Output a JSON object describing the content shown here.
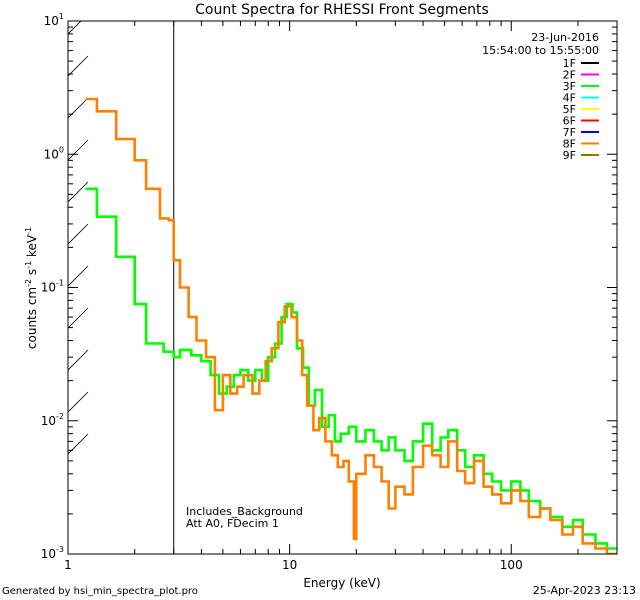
{
  "chart_data": {
    "type": "line",
    "title": "Count Spectra for RHESSI Front Segments",
    "xlabel": "Energy (keV)",
    "ylabel_parts": [
      "counts cm",
      "-2",
      " s",
      "-1",
      " keV",
      "-1"
    ],
    "xscale": "log",
    "yscale": "log",
    "xlim": [
      1,
      300
    ],
    "ylim": [
      0.001,
      10
    ],
    "xticks": [
      {
        "value": 1,
        "label": "1"
      },
      {
        "value": 10,
        "label": "10"
      },
      {
        "value": 100,
        "label": "100"
      }
    ],
    "yticks": [
      {
        "value": 10,
        "base": "10",
        "exp": "1"
      },
      {
        "value": 1,
        "base": "10",
        "exp": "0"
      },
      {
        "value": 0.1,
        "base": "10",
        "exp": "-1"
      },
      {
        "value": 0.01,
        "base": "10",
        "exp": "-2"
      },
      {
        "value": 0.001,
        "base": "10",
        "exp": "-3"
      }
    ],
    "hatched_region_keV": [
      1,
      3
    ],
    "date": "23-Jun-2016",
    "time_range": "15:54:00 to 15:55:00",
    "legend_position": "top-right",
    "legend": [
      {
        "label": "1F",
        "color": "#000000"
      },
      {
        "label": "2F",
        "color": "#ff00ff"
      },
      {
        "label": "3F",
        "color": "#00ff00"
      },
      {
        "label": "4F",
        "color": "#00ffff"
      },
      {
        "label": "5F",
        "color": "#ffff00"
      },
      {
        "label": "6F",
        "color": "#ff0000"
      },
      {
        "label": "7F",
        "color": "#0000ff"
      },
      {
        "label": "8F",
        "color": "#ff8000"
      },
      {
        "label": "9F",
        "color": "#808000"
      }
    ],
    "annotations": [
      "Includes_Background",
      "Att A0, FDecim 1"
    ],
    "series": [
      {
        "name": "3F",
        "color": "#00ff00",
        "points": [
          [
            1.2,
            0.55
          ],
          [
            1.35,
            0.55
          ],
          [
            1.35,
            0.34
          ],
          [
            1.65,
            0.34
          ],
          [
            1.65,
            0.17
          ],
          [
            2.0,
            0.17
          ],
          [
            2.0,
            0.075
          ],
          [
            2.25,
            0.075
          ],
          [
            2.25,
            0.038
          ],
          [
            2.7,
            0.038
          ],
          [
            2.7,
            0.033
          ],
          [
            3.0,
            0.033
          ],
          [
            3.0,
            0.03
          ],
          [
            3.2,
            0.03
          ],
          [
            3.2,
            0.034
          ],
          [
            3.6,
            0.034
          ],
          [
            3.6,
            0.031
          ],
          [
            4.0,
            0.031
          ],
          [
            4.0,
            0.028
          ],
          [
            4.4,
            0.028
          ],
          [
            4.4,
            0.022
          ],
          [
            4.8,
            0.022
          ],
          [
            4.8,
            0.016
          ],
          [
            5.2,
            0.016
          ],
          [
            5.2,
            0.018
          ],
          [
            5.6,
            0.018
          ],
          [
            5.6,
            0.022
          ],
          [
            6.0,
            0.022
          ],
          [
            6.0,
            0.024
          ],
          [
            6.5,
            0.024
          ],
          [
            6.5,
            0.02
          ],
          [
            7.0,
            0.02
          ],
          [
            7.0,
            0.024
          ],
          [
            7.5,
            0.024
          ],
          [
            7.5,
            0.02
          ],
          [
            8.0,
            0.02
          ],
          [
            8.0,
            0.03
          ],
          [
            8.6,
            0.03
          ],
          [
            8.6,
            0.038
          ],
          [
            9.2,
            0.038
          ],
          [
            9.2,
            0.06
          ],
          [
            9.7,
            0.06
          ],
          [
            9.7,
            0.075
          ],
          [
            10.3,
            0.075
          ],
          [
            10.3,
            0.065
          ],
          [
            10.8,
            0.065
          ],
          [
            10.8,
            0.035
          ],
          [
            11.5,
            0.035
          ],
          [
            11.5,
            0.025
          ],
          [
            12.2,
            0.025
          ],
          [
            12.2,
            0.013
          ],
          [
            13.0,
            0.013
          ],
          [
            13.0,
            0.017
          ],
          [
            14.0,
            0.017
          ],
          [
            14.0,
            0.009
          ],
          [
            15.0,
            0.009
          ],
          [
            15.0,
            0.011
          ],
          [
            16.0,
            0.011
          ],
          [
            16.0,
            0.007
          ],
          [
            17.0,
            0.007
          ],
          [
            17.0,
            0.008
          ],
          [
            18.5,
            0.008
          ],
          [
            18.5,
            0.009
          ],
          [
            20.0,
            0.009
          ],
          [
            20.0,
            0.007
          ],
          [
            22.0,
            0.007
          ],
          [
            22.0,
            0.0085
          ],
          [
            24.0,
            0.0085
          ],
          [
            24.0,
            0.007
          ],
          [
            26.0,
            0.007
          ],
          [
            26.0,
            0.006
          ],
          [
            28.0,
            0.006
          ],
          [
            28.0,
            0.0075
          ],
          [
            30.0,
            0.0075
          ],
          [
            30.0,
            0.006
          ],
          [
            33.0,
            0.006
          ],
          [
            33.0,
            0.005
          ],
          [
            36.0,
            0.005
          ],
          [
            36.0,
            0.007
          ],
          [
            40.0,
            0.007
          ],
          [
            40.0,
            0.0095
          ],
          [
            44.0,
            0.0095
          ],
          [
            44.0,
            0.006
          ],
          [
            48.0,
            0.006
          ],
          [
            48.0,
            0.0075
          ],
          [
            52.0,
            0.0075
          ],
          [
            52.0,
            0.0085
          ],
          [
            57.0,
            0.0085
          ],
          [
            57.0,
            0.006
          ],
          [
            62.0,
            0.006
          ],
          [
            62.0,
            0.0045
          ],
          [
            68.0,
            0.0045
          ],
          [
            68.0,
            0.0055
          ],
          [
            75.0,
            0.0055
          ],
          [
            75.0,
            0.004
          ],
          [
            82.0,
            0.004
          ],
          [
            82.0,
            0.0035
          ],
          [
            90.0,
            0.0035
          ],
          [
            90.0,
            0.003
          ],
          [
            100.0,
            0.003
          ],
          [
            100.0,
            0.0035
          ],
          [
            110.0,
            0.0035
          ],
          [
            110.0,
            0.003
          ],
          [
            120.0,
            0.003
          ],
          [
            120.0,
            0.0025
          ],
          [
            135.0,
            0.0025
          ],
          [
            135.0,
            0.0022
          ],
          [
            150.0,
            0.0022
          ],
          [
            150.0,
            0.0019
          ],
          [
            170.0,
            0.0019
          ],
          [
            170.0,
            0.0016
          ],
          [
            190.0,
            0.0016
          ],
          [
            190.0,
            0.0018
          ],
          [
            210.0,
            0.0018
          ],
          [
            210.0,
            0.0014
          ],
          [
            240.0,
            0.0014
          ],
          [
            240.0,
            0.0012
          ],
          [
            270.0,
            0.0012
          ],
          [
            270.0,
            0.0011
          ],
          [
            300.0,
            0.0011
          ]
        ]
      },
      {
        "name": "8F",
        "color": "#ff8000",
        "points": [
          [
            1.2,
            2.6
          ],
          [
            1.35,
            2.6
          ],
          [
            1.35,
            2.1
          ],
          [
            1.65,
            2.1
          ],
          [
            1.65,
            1.3
          ],
          [
            2.0,
            1.3
          ],
          [
            2.0,
            0.9
          ],
          [
            2.25,
            0.9
          ],
          [
            2.25,
            0.55
          ],
          [
            2.6,
            0.55
          ],
          [
            2.6,
            0.33
          ],
          [
            2.85,
            0.33
          ],
          [
            2.85,
            0.32
          ],
          [
            3.0,
            0.32
          ],
          [
            3.0,
            0.16
          ],
          [
            3.2,
            0.16
          ],
          [
            3.2,
            0.1
          ],
          [
            3.5,
            0.1
          ],
          [
            3.5,
            0.06
          ],
          [
            3.8,
            0.06
          ],
          [
            3.8,
            0.04
          ],
          [
            4.2,
            0.04
          ],
          [
            4.2,
            0.03
          ],
          [
            4.6,
            0.03
          ],
          [
            4.6,
            0.012
          ],
          [
            5.0,
            0.012
          ],
          [
            5.0,
            0.022
          ],
          [
            5.4,
            0.022
          ],
          [
            5.4,
            0.016
          ],
          [
            5.8,
            0.016
          ],
          [
            5.8,
            0.018
          ],
          [
            6.2,
            0.018
          ],
          [
            6.2,
            0.022
          ],
          [
            6.8,
            0.022
          ],
          [
            6.8,
            0.016
          ],
          [
            7.3,
            0.016
          ],
          [
            7.3,
            0.02
          ],
          [
            7.8,
            0.02
          ],
          [
            7.8,
            0.028
          ],
          [
            8.3,
            0.028
          ],
          [
            8.3,
            0.035
          ],
          [
            8.9,
            0.035
          ],
          [
            8.9,
            0.055
          ],
          [
            9.5,
            0.055
          ],
          [
            9.5,
            0.072
          ],
          [
            10.2,
            0.072
          ],
          [
            10.2,
            0.06
          ],
          [
            10.8,
            0.06
          ],
          [
            10.8,
            0.04
          ],
          [
            11.4,
            0.04
          ],
          [
            11.4,
            0.022
          ],
          [
            12.0,
            0.022
          ],
          [
            12.0,
            0.013
          ],
          [
            12.8,
            0.013
          ],
          [
            12.8,
            0.0085
          ],
          [
            13.6,
            0.0085
          ],
          [
            13.6,
            0.0105
          ],
          [
            14.5,
            0.0105
          ],
          [
            14.5,
            0.007
          ],
          [
            15.5,
            0.007
          ],
          [
            15.5,
            0.0055
          ],
          [
            16.5,
            0.0055
          ],
          [
            16.5,
            0.0045
          ],
          [
            17.5,
            0.0045
          ],
          [
            17.5,
            0.005
          ],
          [
            18.5,
            0.005
          ],
          [
            18.5,
            0.0035
          ],
          [
            19.5,
            0.0035
          ],
          [
            19.5,
            0.0013
          ],
          [
            20.0,
            0.0013
          ],
          [
            20.0,
            0.004
          ],
          [
            22.0,
            0.004
          ],
          [
            22.0,
            0.0055
          ],
          [
            24.0,
            0.0055
          ],
          [
            24.0,
            0.0045
          ],
          [
            26.0,
            0.0045
          ],
          [
            26.0,
            0.0035
          ],
          [
            28.0,
            0.0035
          ],
          [
            28.0,
            0.0022
          ],
          [
            30.0,
            0.0022
          ],
          [
            30.0,
            0.0032
          ],
          [
            33.0,
            0.0032
          ],
          [
            33.0,
            0.0028
          ],
          [
            36.0,
            0.0028
          ],
          [
            36.0,
            0.0045
          ],
          [
            40.0,
            0.0045
          ],
          [
            40.0,
            0.0065
          ],
          [
            44.0,
            0.0065
          ],
          [
            44.0,
            0.0055
          ],
          [
            48.0,
            0.0055
          ],
          [
            48.0,
            0.0045
          ],
          [
            52.0,
            0.0045
          ],
          [
            52.0,
            0.007
          ],
          [
            57.0,
            0.007
          ],
          [
            57.0,
            0.0042
          ],
          [
            62.0,
            0.0042
          ],
          [
            62.0,
            0.0034
          ],
          [
            68.0,
            0.0034
          ],
          [
            68.0,
            0.005
          ],
          [
            75.0,
            0.005
          ],
          [
            75.0,
            0.0032
          ],
          [
            82.0,
            0.0032
          ],
          [
            82.0,
            0.0028
          ],
          [
            90.0,
            0.0028
          ],
          [
            90.0,
            0.0024
          ],
          [
            100.0,
            0.0024
          ],
          [
            100.0,
            0.003
          ],
          [
            110.0,
            0.003
          ],
          [
            110.0,
            0.0025
          ],
          [
            120.0,
            0.0025
          ],
          [
            120.0,
            0.0019
          ],
          [
            135.0,
            0.0019
          ],
          [
            135.0,
            0.0022
          ],
          [
            150.0,
            0.0022
          ],
          [
            150.0,
            0.0018
          ],
          [
            170.0,
            0.0018
          ],
          [
            170.0,
            0.0014
          ],
          [
            190.0,
            0.0014
          ],
          [
            190.0,
            0.0016
          ],
          [
            210.0,
            0.0016
          ],
          [
            210.0,
            0.0012
          ],
          [
            240.0,
            0.0012
          ],
          [
            240.0,
            0.0011
          ],
          [
            270.0,
            0.0011
          ],
          [
            270.0,
            0.001
          ],
          [
            300.0,
            0.001
          ]
        ]
      }
    ]
  },
  "footer": {
    "generator": "Generated by hsi_min_spectra_plot.pro",
    "timestamp": "25-Apr-2023 23:13"
  }
}
